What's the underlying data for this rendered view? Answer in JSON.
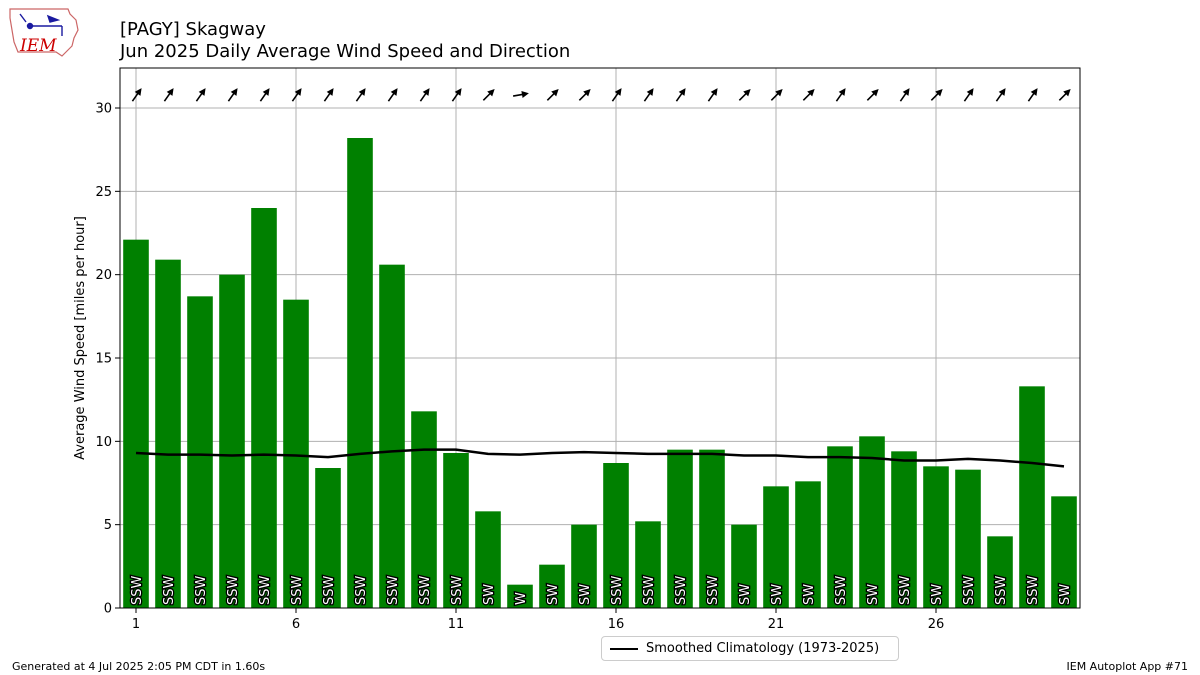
{
  "title": {
    "line1": "[PAGY] Skagway",
    "line2": "Jun 2025 Daily Average Wind Speed and Direction"
  },
  "footer": {
    "left": "Generated at 4 Jul 2025 2:05 PM CDT in 1.60s",
    "right": "IEM Autoplot App #71"
  },
  "logo": {
    "text": "IEM"
  },
  "colors": {
    "bar": "#008000",
    "climo_line": "#000000",
    "grid": "#b0b0b0",
    "logo": "#cc0000"
  },
  "chart_data": {
    "type": "bar",
    "ylabel": "Average Wind Speed [miles per hour]",
    "xlim": [
      0.5,
      30.5
    ],
    "ylim": [
      0,
      32.4
    ],
    "yticks": [
      0,
      5,
      10,
      15,
      20,
      25,
      30
    ],
    "xticks": [
      1,
      6,
      11,
      16,
      21,
      26
    ],
    "grid": true,
    "days": [
      1,
      2,
      3,
      4,
      5,
      6,
      7,
      8,
      9,
      10,
      11,
      12,
      13,
      14,
      15,
      16,
      17,
      18,
      19,
      20,
      21,
      22,
      23,
      24,
      25,
      26,
      27,
      28,
      29,
      30
    ],
    "values": [
      22.1,
      20.9,
      18.7,
      20.0,
      24.0,
      18.5,
      8.4,
      28.2,
      20.6,
      11.8,
      9.3,
      5.8,
      1.4,
      2.6,
      5.0,
      8.7,
      5.2,
      9.5,
      9.5,
      5.0,
      7.3,
      7.6,
      9.7,
      10.3,
      9.4,
      8.5,
      8.3,
      4.3,
      13.3,
      6.7
    ],
    "directions": [
      "SSW",
      "SSW",
      "SSW",
      "SSW",
      "SSW",
      "SSW",
      "SSW",
      "SSW",
      "SSW",
      "SSW",
      "SSW",
      "SW",
      "W",
      "SW",
      "SW",
      "SSW",
      "SSW",
      "SSW",
      "SSW",
      "SW",
      "SW",
      "SW",
      "SSW",
      "SW",
      "SSW",
      "SW",
      "SSW",
      "SSW",
      "SSW",
      "SW"
    ],
    "arrow_angles_deg": [
      35,
      35,
      35,
      35,
      35,
      35,
      35,
      35,
      35,
      35,
      35,
      45,
      80,
      45,
      45,
      35,
      35,
      35,
      35,
      45,
      45,
      45,
      35,
      45,
      35,
      45,
      35,
      35,
      35,
      45
    ],
    "climatology": {
      "name": "Smoothed Climatology (1973-2025)",
      "values": [
        9.3,
        9.2,
        9.2,
        9.15,
        9.2,
        9.15,
        9.05,
        9.25,
        9.4,
        9.5,
        9.5,
        9.25,
        9.2,
        9.3,
        9.35,
        9.3,
        9.25,
        9.25,
        9.25,
        9.15,
        9.15,
        9.05,
        9.05,
        9.0,
        8.85,
        8.85,
        8.95,
        8.85,
        8.7,
        8.5
      ]
    }
  }
}
